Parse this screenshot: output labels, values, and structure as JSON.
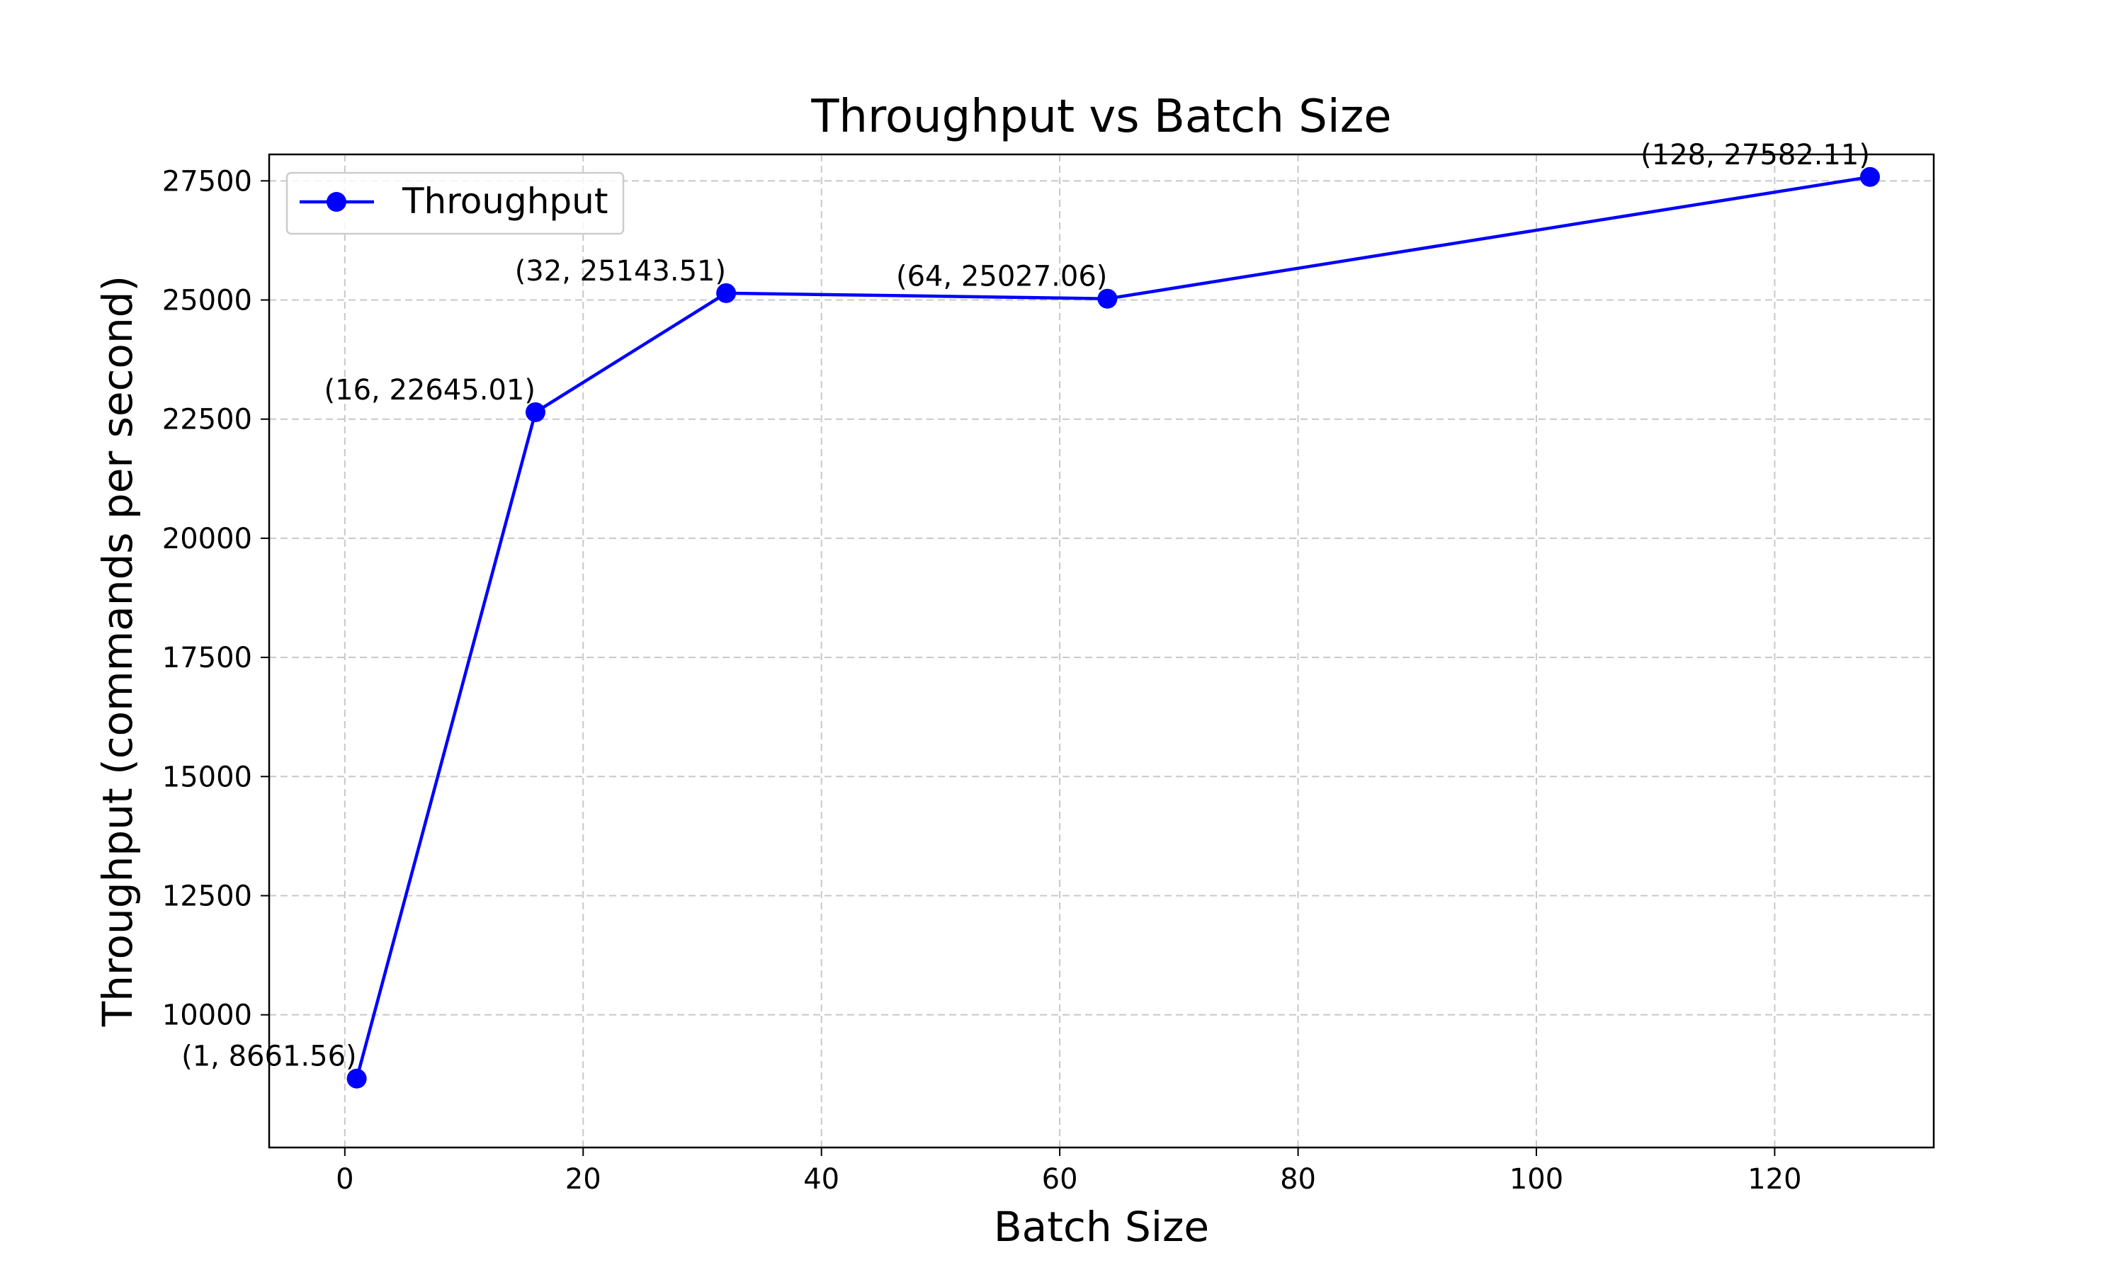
{
  "chart_data": {
    "type": "line",
    "title": "Throughput vs Batch Size",
    "xlabel": "Batch Size",
    "ylabel": "Throughput (commands per second)",
    "xlim": [
      -6.35,
      133.35
    ],
    "ylim": [
      7215.7,
      28054.7
    ],
    "xticks": [
      0,
      20,
      40,
      60,
      80,
      100,
      120
    ],
    "yticks": [
      10000,
      12500,
      15000,
      17500,
      20000,
      22500,
      25000,
      27500
    ],
    "grid": true,
    "legend_position": "top-left",
    "series": [
      {
        "name": "Throughput",
        "color": "#0000ff",
        "marker": "circle",
        "points": [
          {
            "x": 1,
            "y": 8661.56,
            "label": "(1, 8661.56)"
          },
          {
            "x": 16,
            "y": 22645.01,
            "label": "(16, 22645.01)"
          },
          {
            "x": 32,
            "y": 25143.51,
            "label": "(32, 25143.51)"
          },
          {
            "x": 64,
            "y": 25027.06,
            "label": "(64, 25027.06)"
          },
          {
            "x": 128,
            "y": 27582.11,
            "label": "(128, 27582.11)"
          }
        ]
      }
    ]
  }
}
